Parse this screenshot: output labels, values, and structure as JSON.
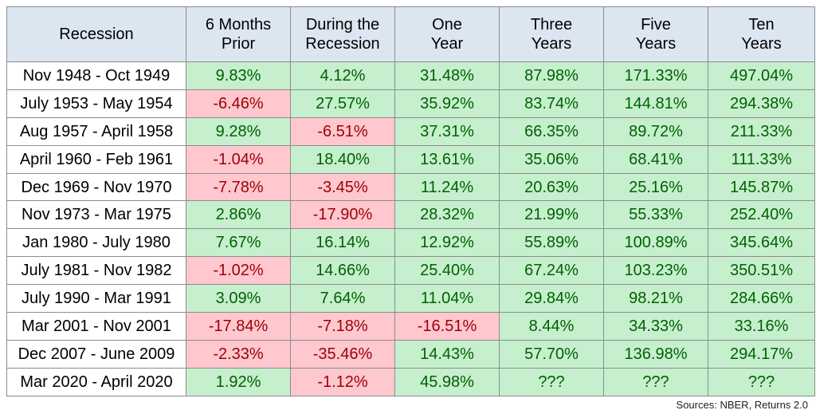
{
  "chart_data": {
    "type": "table",
    "columns": [
      "Recession",
      "6 Months\nPrior",
      "During the\nRecession",
      "One\nYear",
      "Three\nYears",
      "Five\nYears",
      "Ten\nYears"
    ],
    "rows": [
      {
        "label": "Nov 1948 - Oct 1949",
        "values": [
          "9.83%",
          "4.12%",
          "31.48%",
          "87.98%",
          "171.33%",
          "497.04%"
        ]
      },
      {
        "label": "July 1953 - May 1954",
        "values": [
          "-6.46%",
          "27.57%",
          "35.92%",
          "83.74%",
          "144.81%",
          "294.38%"
        ]
      },
      {
        "label": "Aug 1957 - April 1958",
        "values": [
          "9.28%",
          "-6.51%",
          "37.31%",
          "66.35%",
          "89.72%",
          "211.33%"
        ]
      },
      {
        "label": "April 1960 - Feb 1961",
        "values": [
          "-1.04%",
          "18.40%",
          "13.61%",
          "35.06%",
          "68.41%",
          "111.33%"
        ]
      },
      {
        "label": "Dec 1969 - Nov 1970",
        "values": [
          "-7.78%",
          "-3.45%",
          "11.24%",
          "20.63%",
          "25.16%",
          "145.87%"
        ]
      },
      {
        "label": "Nov 1973 - Mar 1975",
        "values": [
          "2.86%",
          "-17.90%",
          "28.32%",
          "21.99%",
          "55.33%",
          "252.40%"
        ]
      },
      {
        "label": "Jan 1980 - July 1980",
        "values": [
          "7.67%",
          "16.14%",
          "12.92%",
          "55.89%",
          "100.89%",
          "345.64%"
        ]
      },
      {
        "label": "July 1981 - Nov 1982",
        "values": [
          "-1.02%",
          "14.66%",
          "25.40%",
          "67.24%",
          "103.23%",
          "350.51%"
        ]
      },
      {
        "label": "July 1990 - Mar 1991",
        "values": [
          "3.09%",
          "7.64%",
          "11.04%",
          "29.84%",
          "98.21%",
          "284.66%"
        ]
      },
      {
        "label": "Mar 2001 - Nov 2001",
        "values": [
          "-17.84%",
          "-7.18%",
          "-16.51%",
          "8.44%",
          "34.33%",
          "33.16%"
        ]
      },
      {
        "label": "Dec 2007 - June 2009",
        "values": [
          "-2.33%",
          "-35.46%",
          "14.43%",
          "57.70%",
          "136.98%",
          "294.17%"
        ]
      },
      {
        "label": "Mar 2020 - April 2020",
        "values": [
          "1.92%",
          "-1.12%",
          "45.98%",
          "???",
          "???",
          "???"
        ]
      }
    ],
    "colors": {
      "header_bg": "#dce6f1",
      "positive_bg": "#c6efce",
      "positive_text": "#006100",
      "negative_bg": "#ffc7ce",
      "negative_text": "#9c0006"
    }
  },
  "footer": {
    "source": "Sources: NBER, Returns 2.0"
  }
}
